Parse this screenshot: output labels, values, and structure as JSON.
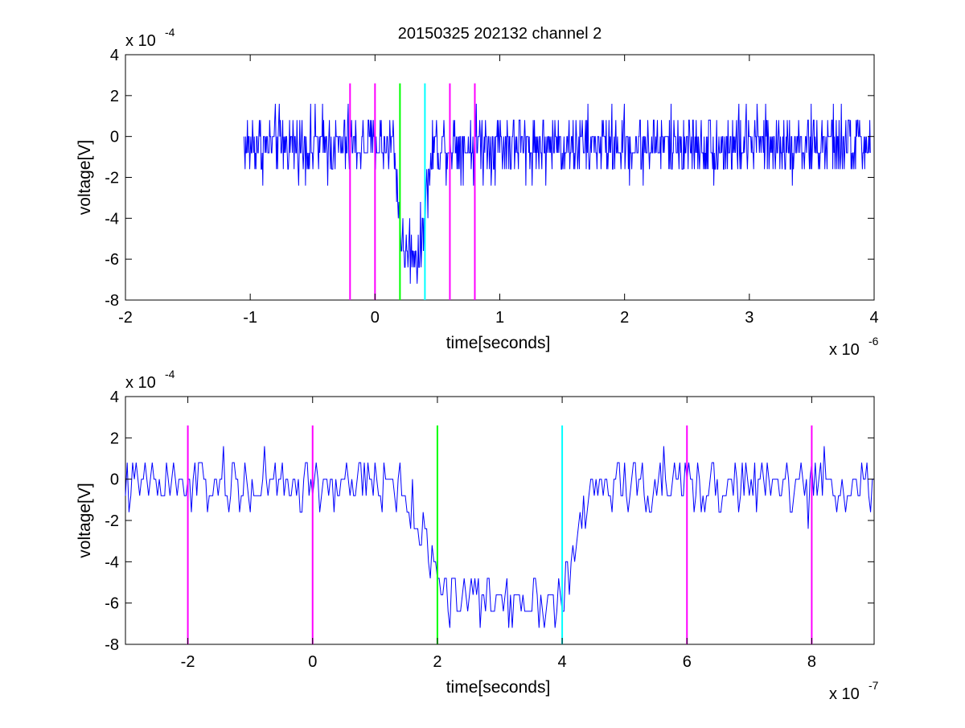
{
  "chart_data": [
    {
      "type": "line",
      "title": "20150325 202132 channel 2",
      "xlabel": "time[seconds]",
      "ylabel": "voltage[V]",
      "x_multiplier_label": "x 10",
      "x_multiplier_exp": "-6",
      "y_multiplier_label": "x 10",
      "y_multiplier_exp": "-4",
      "xlim": [
        -2,
        4
      ],
      "ylim": [
        -8,
        4
      ],
      "xticks": [
        -2,
        -1,
        0,
        1,
        2,
        3,
        4
      ],
      "xtick_labels": [
        "-2",
        "-1",
        "0",
        "1",
        "2",
        "3",
        "4"
      ],
      "yticks": [
        -8,
        -6,
        -4,
        -2,
        0,
        2,
        4
      ],
      "ytick_labels": [
        "-8",
        "-6",
        "-4",
        "-2",
        "0",
        "2",
        "4"
      ],
      "grid": false,
      "series": [
        {
          "color": "#0000ff",
          "x_start": -1.05,
          "x_end": 3.97,
          "noise_amplitude": 1.6,
          "dip_start": 0.15,
          "dip_min_start": 0.22,
          "dip_min_end": 0.36,
          "dip_end": 0.47,
          "dip_level": -5.6,
          "baseline": -0.4
        }
      ],
      "markers": [
        {
          "x": -0.2,
          "color": "#ff00ff"
        },
        {
          "x": 0.0,
          "color": "#ff00ff"
        },
        {
          "x": 0.2,
          "color": "#00ff00"
        },
        {
          "x": 0.4,
          "color": "#00ffff"
        },
        {
          "x": 0.6,
          "color": "#ff00ff"
        },
        {
          "x": 0.8,
          "color": "#ff00ff"
        }
      ],
      "marker_range": [
        -8,
        2.6
      ]
    },
    {
      "type": "line",
      "xlabel": "time[seconds]",
      "ylabel": "voltage[V]",
      "x_multiplier_label": "x 10",
      "x_multiplier_exp": "-7",
      "y_multiplier_label": "x 10",
      "y_multiplier_exp": "-4",
      "xlim": [
        -3,
        9
      ],
      "ylim": [
        -8,
        4
      ],
      "xticks": [
        -2,
        0,
        2,
        4,
        6,
        8
      ],
      "xtick_labels": [
        "-2",
        "0",
        "2",
        "4",
        "6",
        "8"
      ],
      "yticks": [
        -8,
        -6,
        -4,
        -2,
        0,
        2,
        4
      ],
      "ytick_labels": [
        "-8",
        "-6",
        "-4",
        "-2",
        "0",
        "2",
        "4"
      ],
      "grid": false,
      "series": [
        {
          "color": "#0000ff",
          "x_start": -3,
          "x_end": 9,
          "noise_amplitude": 1.4,
          "dip_start": 1.4,
          "dip_min_start": 2.2,
          "dip_min_end": 4.0,
          "dip_end": 4.5,
          "dip_level": -5.8,
          "baseline": -0.3
        }
      ],
      "markers": [
        {
          "x": -2,
          "color": "#ff00ff"
        },
        {
          "x": 0,
          "color": "#ff00ff"
        },
        {
          "x": 2,
          "color": "#00ff00"
        },
        {
          "x": 4,
          "color": "#00ffff"
        },
        {
          "x": 6,
          "color": "#ff00ff"
        },
        {
          "x": 8,
          "color": "#ff00ff"
        }
      ],
      "marker_range": [
        -8,
        2.6
      ]
    }
  ]
}
